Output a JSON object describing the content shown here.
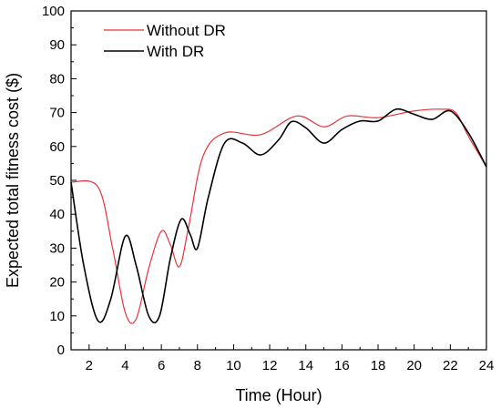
{
  "chart_data": {
    "type": "line",
    "xlabel": "Time (Hour)",
    "ylabel": "Expected total fitness cost ($)",
    "xlim": [
      1,
      24
    ],
    "ylim": [
      0,
      100
    ],
    "xticks": [
      2,
      4,
      6,
      8,
      10,
      12,
      14,
      16,
      18,
      20,
      22,
      24
    ],
    "yticks": [
      0,
      10,
      20,
      30,
      40,
      50,
      60,
      70,
      80,
      90,
      100
    ],
    "grid": false,
    "legend_position": "top-left",
    "series": [
      {
        "name": "Without DR",
        "color": "#e8333a",
        "points": [
          [
            1,
            49.5
          ],
          [
            2.5,
            48
          ],
          [
            3.3,
            30
          ],
          [
            4,
            11
          ],
          [
            4.6,
            9
          ],
          [
            5.3,
            24
          ],
          [
            6,
            35
          ],
          [
            6.5,
            31
          ],
          [
            7,
            24.5
          ],
          [
            7.5,
            36
          ],
          [
            8.3,
            57
          ],
          [
            9.5,
            64
          ],
          [
            11.5,
            63.5
          ],
          [
            13.5,
            69
          ],
          [
            15,
            65.8
          ],
          [
            16.3,
            69
          ],
          [
            18,
            68.5
          ],
          [
            20,
            70.5
          ],
          [
            21.5,
            71
          ],
          [
            22.3,
            70
          ],
          [
            23,
            63
          ],
          [
            24,
            54
          ]
        ]
      },
      {
        "name": "With DR",
        "color": "#000000",
        "points": [
          [
            1,
            49.5
          ],
          [
            1.7,
            25
          ],
          [
            2.5,
            8.5
          ],
          [
            3.2,
            15
          ],
          [
            4,
            33.5
          ],
          [
            4.6,
            25
          ],
          [
            5.3,
            10
          ],
          [
            5.9,
            10
          ],
          [
            6.5,
            27
          ],
          [
            7.1,
            38.5
          ],
          [
            7.6,
            34
          ],
          [
            8,
            30
          ],
          [
            8.6,
            45
          ],
          [
            9.5,
            61
          ],
          [
            10.5,
            61
          ],
          [
            11.5,
            57.5
          ],
          [
            12.5,
            62
          ],
          [
            13.2,
            67.3
          ],
          [
            14,
            65.5
          ],
          [
            15,
            61
          ],
          [
            16,
            65
          ],
          [
            17,
            67.5
          ],
          [
            18,
            67.5
          ],
          [
            19,
            71
          ],
          [
            20,
            69.5
          ],
          [
            21,
            68
          ],
          [
            22,
            70.5
          ],
          [
            23,
            64
          ],
          [
            24,
            54
          ]
        ]
      }
    ]
  }
}
